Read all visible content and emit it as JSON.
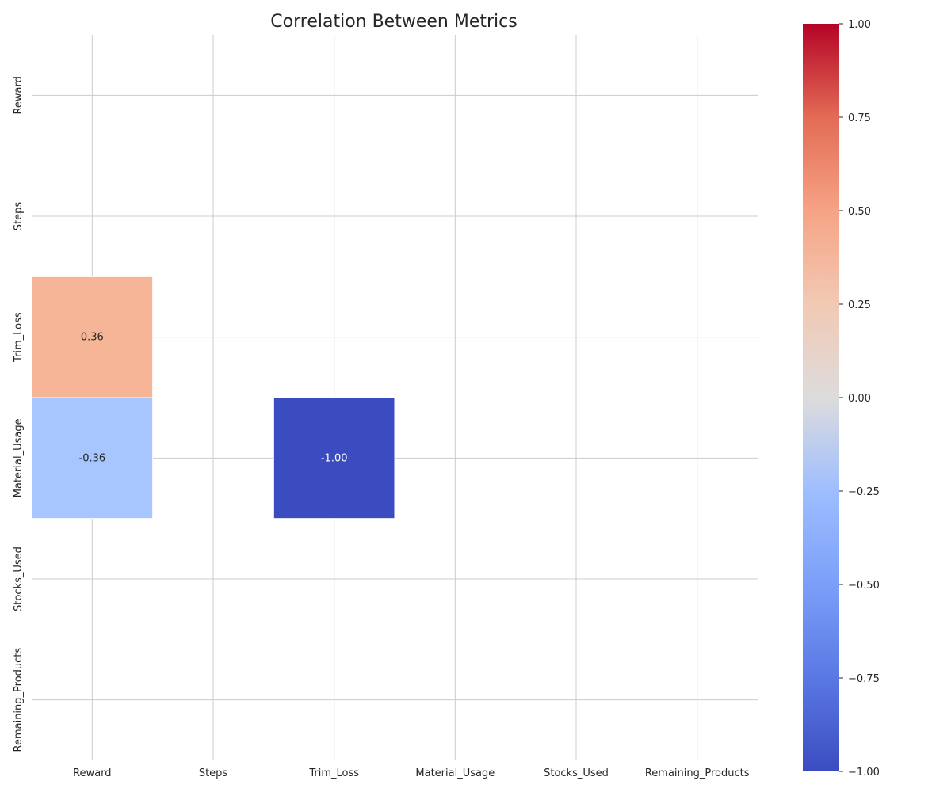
{
  "chart_data": {
    "type": "heatmap",
    "title": "Correlation Between Metrics",
    "rows": [
      "Reward",
      "Steps",
      "Trim_Loss",
      "Material_Usage",
      "Stocks_Used",
      "Remaining_Products"
    ],
    "columns": [
      "Reward",
      "Steps",
      "Trim_Loss",
      "Material_Usage",
      "Stocks_Used",
      "Remaining_Products"
    ],
    "cells": [
      {
        "row": 2,
        "col": 0,
        "value": 0.36,
        "label": "0.36"
      },
      {
        "row": 3,
        "col": 0,
        "value": -0.36,
        "label": "-0.36"
      },
      {
        "row": 3,
        "col": 2,
        "value": -1.0,
        "label": "-1.00"
      }
    ],
    "colormap": "coolwarm",
    "vmin": -1.0,
    "vmax": 1.0,
    "colorbar_ticks": [
      "−1.00",
      "−0.75",
      "−0.50",
      "−0.25",
      "0.00",
      "0.25",
      "0.50",
      "0.75",
      "1.00"
    ],
    "colorbar_tick_values": [
      -1.0,
      -0.75,
      -0.5,
      -0.25,
      0.0,
      0.25,
      0.5,
      0.75,
      1.0
    ],
    "grid": true,
    "colors": {
      "cell_positive_036": "#f6b596",
      "cell_negative_036": "#a7c5fe",
      "cell_negative_100": "#3b4cc0",
      "grid": "#cccccc",
      "text": "#262626"
    }
  }
}
